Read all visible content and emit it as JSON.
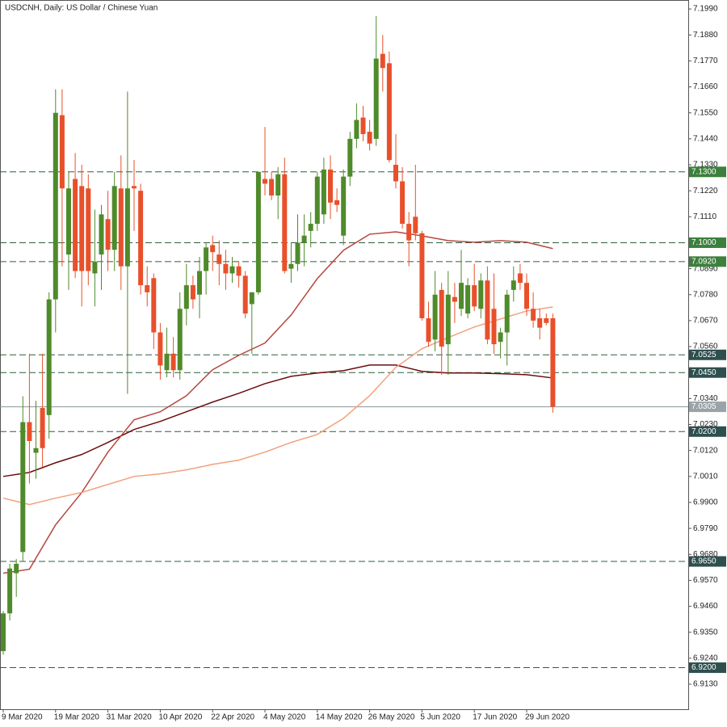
{
  "chart_data": {
    "type": "candlestick",
    "title": "USDCNH, Daily:  US Dollar / Chinese Yuan",
    "categories": [
      "9 Mar 2020",
      null,
      null,
      null,
      null,
      null,
      null,
      null,
      "19 Mar 2020",
      null,
      null,
      null,
      null,
      null,
      null,
      null,
      "31 Mar 2020",
      null,
      null,
      null,
      null,
      null,
      null,
      null,
      "10 Apr 2020",
      null,
      null,
      null,
      null,
      null,
      null,
      null,
      "22 Apr 2020",
      null,
      null,
      null,
      null,
      null,
      null,
      null,
      "4 May 2020",
      null,
      null,
      null,
      null,
      null,
      null,
      null,
      "14 May 2020",
      null,
      null,
      null,
      null,
      null,
      null,
      null,
      "26 May 2020",
      null,
      null,
      null,
      null,
      null,
      null,
      null,
      "5 Jun 2020",
      null,
      null,
      null,
      null,
      null,
      null,
      null,
      "17 Jun 2020",
      null,
      null,
      null,
      null,
      null,
      null,
      null,
      "29 Jun 2020",
      null,
      null,
      null,
      null
    ],
    "open": [
      6.927,
      6.943,
      6.96,
      6.969,
      7.024,
      7.011,
      7.03,
      7.027,
      7.076,
      7.154,
      7.095,
      7.127,
      7.124,
      7.123,
      7.087,
      7.095,
      7.11,
      7.097,
      7.123,
      7.09,
      7.124,
      7.122,
      7.082,
      7.085,
      7.062,
      7.046,
      7.053,
      7.046,
      7.072,
      7.082,
      7.078,
      7.088,
      7.099,
      7.095,
      7.091,
      7.087,
      7.09,
      7.086,
      7.074,
      7.079,
      7.127,
      7.127,
      7.12,
      7.129,
      7.089,
      7.091,
      7.1,
      7.105,
      7.108,
      7.112,
      7.131,
      7.118,
      7.103,
      7.128,
      7.144,
      7.153,
      7.147,
      7.144,
      7.18,
      7.176,
      7.133,
      7.126,
      7.108,
      7.111,
      7.104,
      7.068,
      7.059,
      7.08,
      7.057,
      7.077,
      7.072,
      7.07,
      7.082,
      7.072,
      7.084,
      7.072,
      7.058,
      7.062,
      7.08,
      7.087,
      7.083,
      7.072,
      7.068,
      7.068,
      7.068
    ],
    "high": [
      6.944,
      6.964,
      6.966,
      7.035,
      7.053,
      7.033,
      7.053,
      7.079,
      7.165,
      7.165,
      7.13,
      7.138,
      7.133,
      7.129,
      7.114,
      7.116,
      7.122,
      7.13,
      7.137,
      7.164,
      7.135,
      7.125,
      7.09,
      7.087,
      7.066,
      7.064,
      7.06,
      7.079,
      7.091,
      7.086,
      7.094,
      7.1,
      7.103,
      7.101,
      7.097,
      7.094,
      7.092,
      7.088,
      7.079,
      7.13,
      7.149,
      7.13,
      7.132,
      7.136,
      7.1,
      7.112,
      7.112,
      7.113,
      7.13,
      7.136,
      7.137,
      7.123,
      7.131,
      7.147,
      7.159,
      7.158,
      7.152,
      7.196,
      7.188,
      7.181,
      7.146,
      7.132,
      7.113,
      7.133,
      7.105,
      7.075,
      7.088,
      7.083,
      7.088,
      7.083,
      7.097,
      7.085,
      7.091,
      7.087,
      7.09,
      7.087,
      7.064,
      7.08,
      7.09,
      7.091,
      7.087,
      7.079,
      7.072,
      7.07,
      7.07
    ],
    "low": [
      6.9255,
      6.94,
      6.95,
      6.965,
      6.998,
      7.0,
      7.005,
      7.017,
      7.062,
      7.09,
      7.08,
      7.085,
      7.073,
      7.082,
      7.073,
      7.08,
      7.088,
      7.088,
      7.08,
      7.036,
      7.105,
      7.078,
      7.073,
      7.055,
      7.042,
      7.043,
      7.043,
      7.042,
      7.065,
      7.072,
      7.068,
      7.078,
      7.088,
      7.082,
      7.08,
      7.083,
      7.081,
      7.068,
      7.053,
      7.078,
      7.12,
      7.118,
      7.11,
      7.087,
      7.083,
      7.088,
      7.09,
      7.098,
      7.105,
      7.108,
      7.11,
      7.113,
      7.099,
      7.124,
      7.14,
      7.143,
      7.139,
      7.141,
      7.164,
      7.134,
      7.123,
      7.106,
      7.09,
      7.101,
      7.067,
      7.056,
      7.054,
      7.044,
      7.044,
      7.066,
      7.069,
      7.068,
      7.071,
      7.068,
      7.057,
      7.053,
      7.051,
      7.048,
      7.075,
      7.08,
      7.069,
      7.064,
      7.059,
      7.065,
      7.028
    ],
    "close": [
      6.943,
      6.962,
      6.964,
      7.024,
      7.016,
      7.013,
      7.013,
      7.076,
      7.155,
      7.123,
      7.123,
      7.088,
      7.088,
      7.088,
      7.092,
      7.112,
      7.097,
      7.124,
      7.09,
      7.123,
      7.123,
      7.082,
      7.079,
      7.062,
      7.048,
      7.053,
      7.046,
      7.072,
      7.082,
      7.076,
      7.088,
      7.098,
      7.096,
      7.091,
      7.087,
      7.09,
      7.086,
      7.07,
      7.079,
      7.13,
      7.125,
      7.12,
      7.129,
      7.088,
      7.091,
      7.1,
      7.103,
      7.108,
      7.128,
      7.131,
      7.117,
      7.116,
      7.128,
      7.144,
      7.152,
      7.146,
      7.142,
      7.178,
      7.174,
      7.135,
      7.126,
      7.108,
      7.101,
      7.104,
      7.068,
      7.058,
      7.078,
      7.056,
      7.078,
      7.075,
      7.083,
      7.082,
      7.073,
      7.084,
      7.059,
      7.057,
      7.062,
      7.078,
      7.084,
      7.083,
      7.072,
      7.067,
      7.064,
      7.066,
      7.0305
    ],
    "up_color": "#4f8a2b",
    "down_color": "#e8502b",
    "lines": [
      {
        "color": "#6b0d0d",
        "x": [
          0,
          4,
          8,
          12,
          16,
          20,
          24,
          28,
          32,
          36,
          40,
          44,
          48,
          52,
          56,
          60,
          64,
          68,
          72,
          76,
          80,
          84
        ],
        "values": [
          7.001,
          7.0027,
          7.0068,
          7.0103,
          7.0154,
          7.0209,
          7.0243,
          7.0284,
          7.0325,
          7.0362,
          7.0403,
          7.0434,
          7.0448,
          7.0458,
          7.0482,
          7.0482,
          7.0455,
          7.0448,
          7.0448,
          7.0445,
          7.0441,
          7.0427
        ]
      },
      {
        "color": "#b8463f",
        "x": [
          0,
          4,
          8,
          12,
          16,
          20,
          24,
          28,
          32,
          36,
          40,
          44,
          48,
          52,
          56,
          60,
          64,
          68,
          72,
          76,
          80,
          84
        ],
        "values": [
          6.96,
          6.9617,
          6.9805,
          6.9942,
          7.0113,
          7.025,
          7.0284,
          7.0352,
          7.0462,
          7.0523,
          7.0575,
          7.0694,
          7.0848,
          7.0968,
          7.1036,
          7.1046,
          7.1029,
          7.1009,
          7.1002,
          7.1009,
          7.1002,
          7.0975
        ]
      },
      {
        "color": "#f4a07c",
        "x": [
          0,
          4,
          8,
          12,
          16,
          20,
          24,
          28,
          32,
          36,
          40,
          44,
          48,
          52,
          56,
          60,
          64,
          68,
          72,
          76,
          80,
          84
        ],
        "values": [
          6.9918,
          6.9891,
          6.9918,
          6.9942,
          6.9976,
          7.001,
          7.0021,
          7.0038,
          7.0061,
          7.0079,
          7.0113,
          7.0154,
          7.0188,
          7.0256,
          7.0352,
          7.0472,
          7.0551,
          7.0598,
          7.0643,
          7.0677,
          7.0711,
          7.0728
        ]
      }
    ],
    "levels": [
      {
        "value": 7.13,
        "label": "7.1300",
        "color": "#3d7f3d",
        "style": "dashed"
      },
      {
        "value": 7.1,
        "label": "7.1000",
        "color": "#3d7f3d",
        "style": "dashed"
      },
      {
        "value": 7.092,
        "label": "7.0920",
        "color": "#3d7f3d",
        "style": "dashed"
      },
      {
        "value": 7.0525,
        "label": "7.0525",
        "color": "#2f4f4f",
        "style": "dashed"
      },
      {
        "value": 7.045,
        "label": "7.0450",
        "color": "#2f4f4f",
        "style": "dashed"
      },
      {
        "value": 7.02,
        "label": "7.0200",
        "color": "#2f4f4f",
        "style": "dashed"
      },
      {
        "value": 6.965,
        "label": "6.9650",
        "color": "#2f4f4f",
        "style": "dashed"
      },
      {
        "value": 6.92,
        "label": "6.9200",
        "color": "#2f4f4f",
        "style": "dashed"
      },
      {
        "value": 7.0305,
        "label": "7.0305",
        "color": "#9aa3a8",
        "style": "solid"
      }
    ],
    "ylim": [
      6.9024,
      7.2028
    ],
    "yticks": [
      {
        "value": 7.199,
        "label": "7.1990"
      },
      {
        "value": 7.188,
        "label": "7.1880"
      },
      {
        "value": 7.177,
        "label": "7.1770"
      },
      {
        "value": 7.166,
        "label": "7.1660"
      },
      {
        "value": 7.155,
        "label": "7.1550"
      },
      {
        "value": 7.144,
        "label": "7.1440"
      },
      {
        "value": 7.133,
        "label": "7.1330"
      },
      {
        "value": 7.122,
        "label": "7.1220"
      },
      {
        "value": 7.111,
        "label": "7.1110"
      },
      {
        "value": 7.089,
        "label": "7.0890"
      },
      {
        "value": 7.078,
        "label": "7.0780"
      },
      {
        "value": 7.067,
        "label": "7.0670"
      },
      {
        "value": 7.056,
        "label": "7.0560"
      },
      {
        "value": 7.034,
        "label": "7.0340"
      },
      {
        "value": 7.023,
        "label": "7.0230"
      },
      {
        "value": 7.012,
        "label": "7.0120"
      },
      {
        "value": 7.001,
        "label": "7.0010"
      },
      {
        "value": 6.99,
        "label": "6.9900"
      },
      {
        "value": 6.979,
        "label": "6.9790"
      },
      {
        "value": 6.968,
        "label": "6.9680"
      },
      {
        "value": 6.957,
        "label": "6.9570"
      },
      {
        "value": 6.946,
        "label": "6.9460"
      },
      {
        "value": 6.935,
        "label": "6.9350"
      },
      {
        "value": 6.924,
        "label": "6.9240"
      },
      {
        "value": 6.913,
        "label": "6.9130"
      }
    ]
  }
}
